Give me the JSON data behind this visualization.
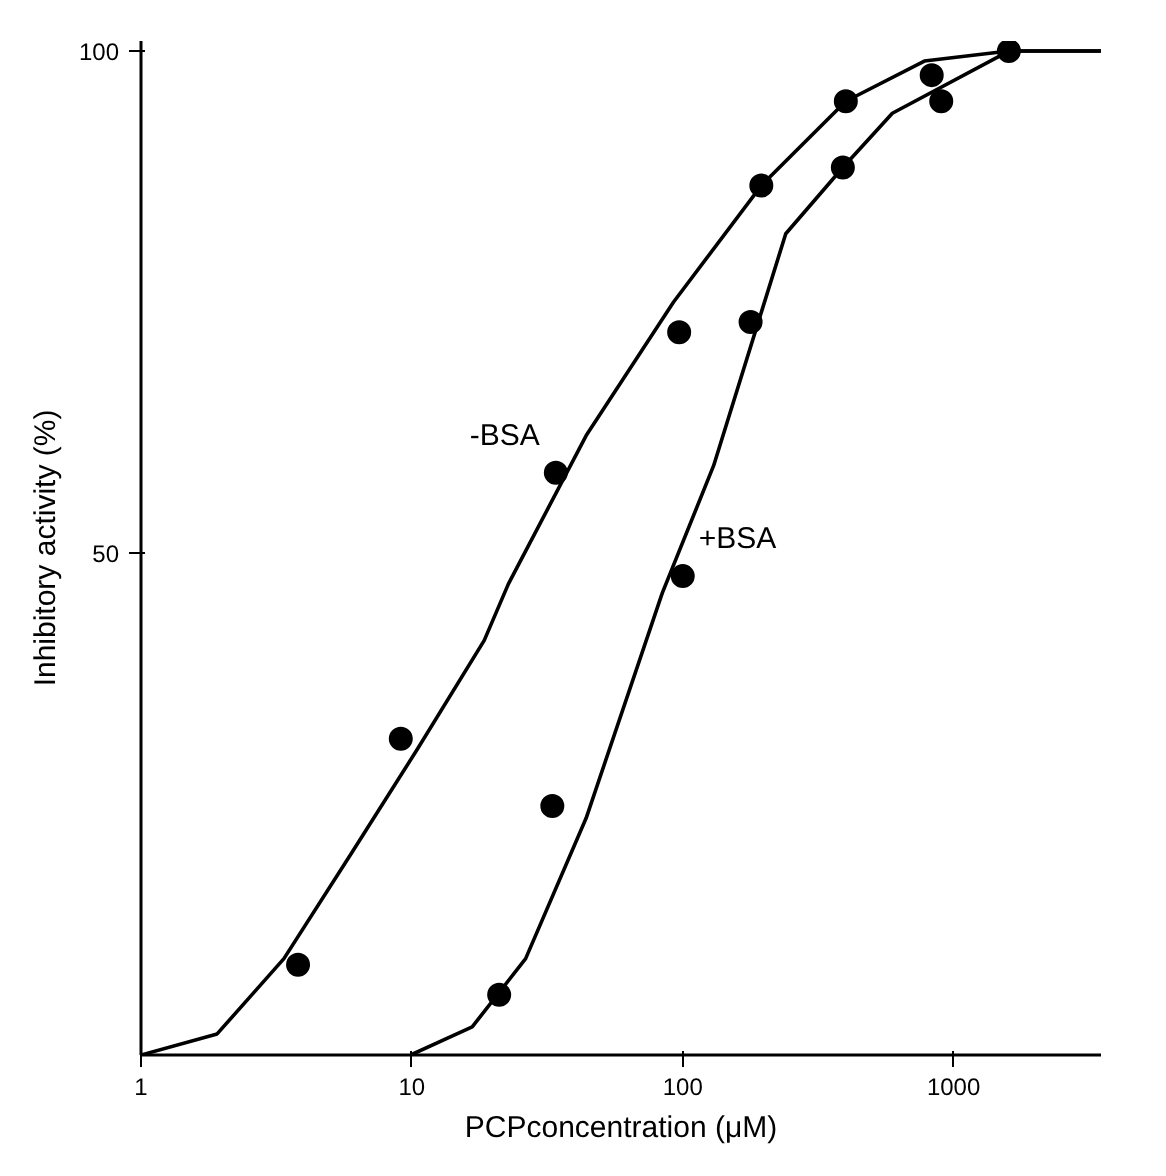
{
  "chart_data": {
    "type": "scatter",
    "xlabel": "PCPconcentration (μM)",
    "ylabel": "Inhibitory activity (%)",
    "log": "x",
    "xlim": [
      1,
      3500
    ],
    "ylim": [
      0,
      101
    ],
    "xticks": [
      1,
      10,
      100,
      1000
    ],
    "yticks": [
      50,
      100
    ],
    "marker": "circle",
    "series": [
      {
        "name": "-BSA",
        "color": "#000000",
        "x": [
          3.8,
          9.1,
          34,
          97,
          195,
          400,
          830,
          1600
        ],
        "values": [
          9,
          31.5,
          58,
          72,
          86.6,
          95,
          97.6,
          100
        ]
      },
      {
        "name": "+BSA",
        "color": "#000000",
        "x": [
          21,
          33,
          100,
          178,
          390,
          900
        ],
        "values": [
          6,
          24.8,
          47.7,
          73,
          88.4,
          95
        ]
      },
      {
        "type": "line",
        "marker": "none",
        "color": "#000000",
        "x": [
          1,
          1.91,
          3.37,
          5.95,
          10.5,
          18.5,
          22.7,
          44,
          92.5,
          195,
          400,
          780,
          1600,
          3500
        ],
        "values": [
          0,
          2.1,
          9.6,
          20,
          30.5,
          41.3,
          46.9,
          61.7,
          75,
          86.6,
          95,
          99,
          100,
          100
        ]
      },
      {
        "type": "line",
        "marker": "none",
        "color": "#000000",
        "x": [
          9.9,
          16.7,
          26.3,
          44,
          84,
          130,
          240,
          390,
          594,
          1600,
          3500
        ],
        "values": [
          0,
          2.8,
          9.6,
          23.6,
          46,
          58.7,
          81.8,
          88.4,
          93.8,
          100,
          100
        ]
      }
    ]
  }
}
